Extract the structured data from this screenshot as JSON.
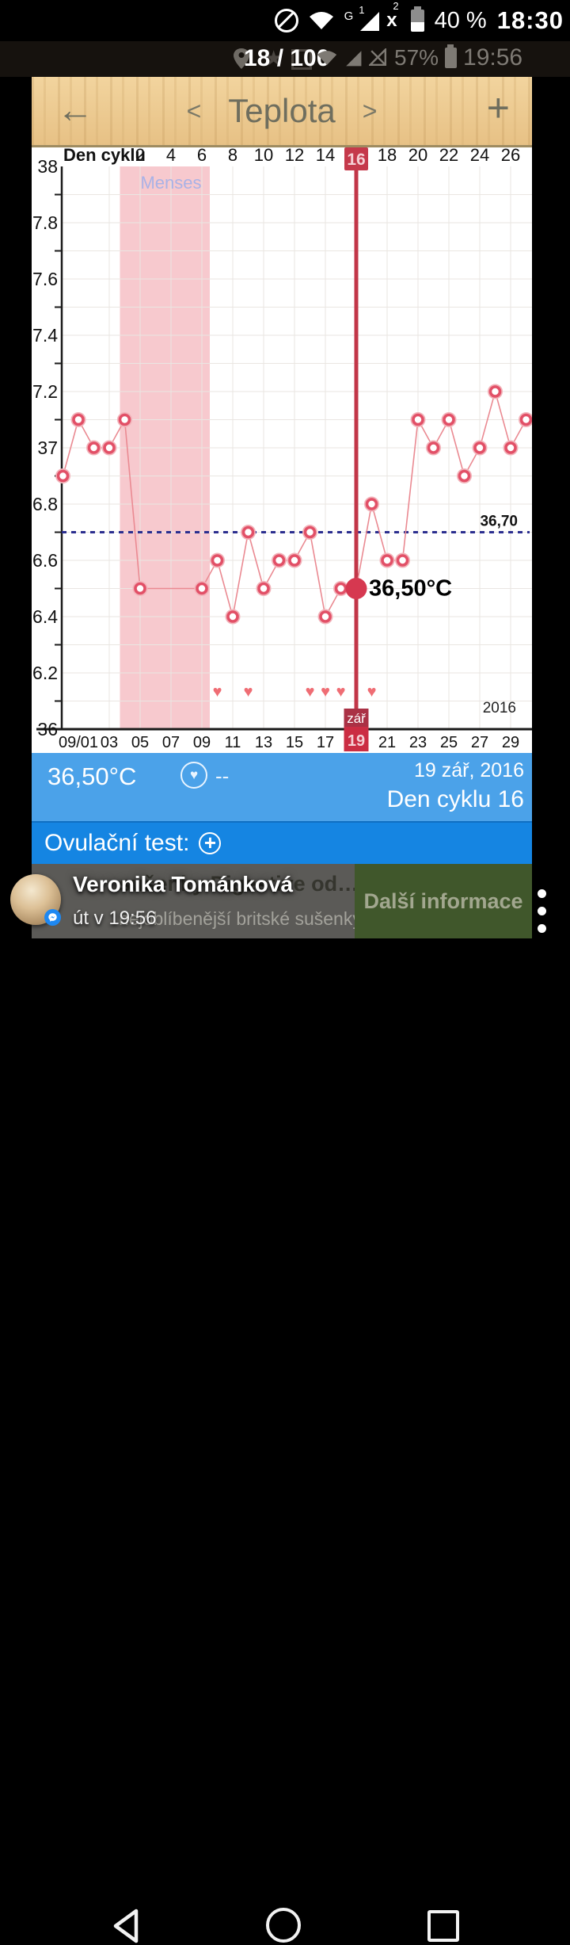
{
  "status_bar_top": {
    "battery_percent": "40 %",
    "time": "18:30",
    "network_type": "G",
    "sim1_badge": "1",
    "sim2_badge": "2",
    "sim2_state": "x"
  },
  "gallery_bar": {
    "counter": "18 / 100",
    "battery_percent": "57%",
    "time": "19:56"
  },
  "header": {
    "back_icon": "←",
    "prev_icon": "<",
    "title": "Teplota",
    "next_icon": ">",
    "add_icon": "+"
  },
  "chart_data": {
    "type": "line",
    "title": "Teplota",
    "top_axis_label": "Den cyklu",
    "top_axis_ticks": [
      2,
      4,
      6,
      8,
      10,
      12,
      14,
      16,
      18,
      20,
      22,
      24,
      26
    ],
    "bottom_axis_ticks": [
      "09/01",
      "03",
      "05",
      "07",
      "09",
      "11",
      "13",
      "15",
      "17",
      "19",
      "21",
      "23",
      "25",
      "27",
      "29"
    ],
    "ylim": [
      36,
      38
    ],
    "y_label_step": 0.2,
    "grid": true,
    "year_label": "2016",
    "menses": {
      "label": "Menses",
      "start_date": 4,
      "end_date": 9
    },
    "coverline": {
      "value": 36.7,
      "label": "36,70"
    },
    "selected": {
      "date": 19,
      "cycle_day": 16,
      "temp": 36.5,
      "label": "36,50°C",
      "month_badge": "zář",
      "day_badge": "19"
    },
    "series": [
      {
        "name": "temperature",
        "points": [
          [
            0,
            36.9
          ],
          [
            1,
            37.1
          ],
          [
            2,
            37.0
          ],
          [
            3,
            37.0
          ],
          [
            4,
            37.1
          ],
          [
            5,
            36.5
          ],
          [
            9,
            36.5
          ],
          [
            10,
            36.6
          ],
          [
            11,
            36.4
          ],
          [
            12,
            36.7
          ],
          [
            13,
            36.5
          ],
          [
            14,
            36.6
          ],
          [
            15,
            36.6
          ],
          [
            16,
            36.7
          ],
          [
            17,
            36.4
          ],
          [
            18,
            36.5
          ],
          [
            19,
            36.5
          ],
          [
            20,
            36.8
          ],
          [
            21,
            36.6
          ],
          [
            22,
            36.6
          ],
          [
            23,
            37.1
          ],
          [
            24,
            37.0
          ],
          [
            25,
            37.1
          ],
          [
            26,
            36.9
          ],
          [
            27,
            37.0
          ],
          [
            28,
            37.2
          ],
          [
            29,
            37.0
          ],
          [
            30,
            37.1
          ]
        ]
      }
    ],
    "heart_dates": [
      10,
      12,
      16,
      17,
      18,
      20
    ],
    "colors": {
      "line": "#ea8a92",
      "marker": "#e25067",
      "marker_halo": "#f2b3ba",
      "selected": "#d63850",
      "vline": "#c23648",
      "badge": "#c5394b",
      "month_badge": "#aa3145",
      "day_badge": "#cb2d43",
      "badge_text": "#f5d0d5",
      "menses_fill": "#f7c9ce",
      "menses_text": "#a9b2e6",
      "coverline": "#2b2e8f",
      "grid": "#eae6e2",
      "axis": "#1a1a1a",
      "heart": "#ef6d74"
    }
  },
  "info_bar": {
    "temperature": "36,50°C",
    "mood_icon": "♥",
    "mood_value": "--",
    "date": "19 zář, 2016",
    "cycle_day": "Den cyklu 16"
  },
  "ovulation_bar": {
    "label": "Ovulační test:",
    "add_icon": "+"
  },
  "ad_banner": {
    "title": "sušenky Digestive od…",
    "subtitle": "nejoblíbenější britské sušenky",
    "cta": "Další informace"
  },
  "notification": {
    "sender": "Veronika Tománková",
    "time": "út v 19:56"
  }
}
